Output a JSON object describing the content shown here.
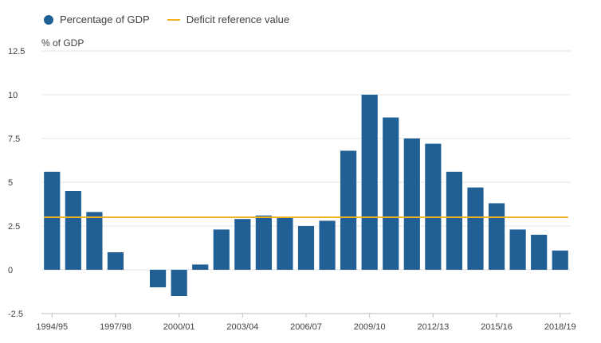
{
  "chart_data": {
    "type": "bar",
    "ylabel": "% of GDP",
    "ylim": [
      -2.5,
      12.5
    ],
    "yticks": [
      12.5,
      10,
      7.5,
      5,
      2.5,
      0,
      -2.5
    ],
    "yticklabels": [
      "12.5",
      "10",
      "7.5",
      "5",
      "2.5",
      "0",
      "-2.5"
    ],
    "categories": [
      "1994/95",
      "1995/96",
      "1996/97",
      "1997/98",
      "1998/99",
      "1999/00",
      "2000/01",
      "2001/02",
      "2002/03",
      "2003/04",
      "2004/05",
      "2005/06",
      "2006/07",
      "2007/08",
      "2008/09",
      "2009/10",
      "2010/11",
      "2011/12",
      "2012/13",
      "2013/14",
      "2014/15",
      "2015/16",
      "2016/17",
      "2017/18",
      "2018/19"
    ],
    "xticklabels": [
      "1994/95",
      "1997/98",
      "2000/01",
      "2003/04",
      "2006/07",
      "2009/10",
      "2012/13",
      "2015/16",
      "2018/19"
    ],
    "series": [
      {
        "name": "Percentage of GDP",
        "type": "bar",
        "color": "#206095",
        "values": [
          5.6,
          4.5,
          3.3,
          1.0,
          0.0,
          -1.0,
          -1.5,
          0.3,
          2.3,
          2.9,
          3.1,
          3.0,
          2.5,
          2.8,
          6.8,
          10.0,
          8.7,
          7.5,
          7.2,
          5.6,
          4.7,
          3.8,
          2.3,
          2.0,
          1.1
        ]
      },
      {
        "name": "Deficit reference value",
        "type": "line",
        "color": "#f0b323",
        "value": 3.0
      }
    ],
    "grid": true,
    "legend": "top-left"
  }
}
